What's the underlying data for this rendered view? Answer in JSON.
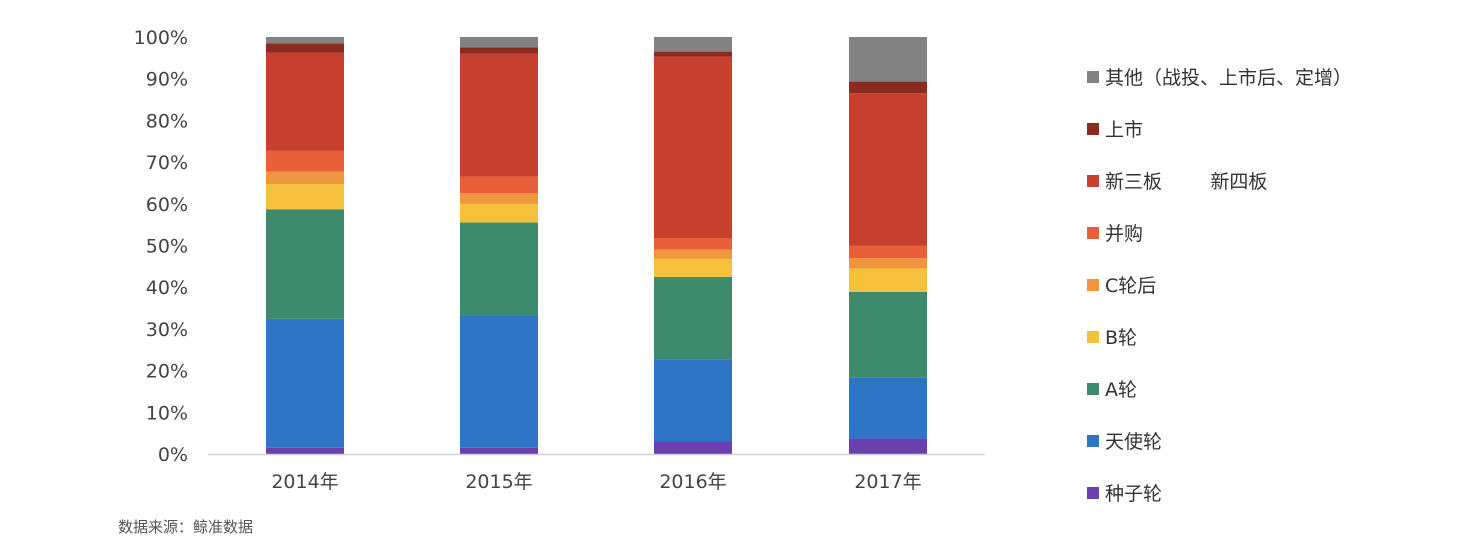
{
  "chart_data": {
    "type": "bar",
    "stacked": true,
    "categories": [
      "2014年",
      "2015年",
      "2016年",
      "2017年"
    ],
    "ylim": [
      0,
      100
    ],
    "yticks": [
      "0%",
      "10%",
      "20%",
      "30%",
      "40%",
      "50%",
      "60%",
      "70%",
      "80%",
      "90%",
      "100%"
    ],
    "legend_position": "right",
    "series": [
      {
        "name": "种子轮",
        "color": "#6a3fb0",
        "values": [
          1.5,
          1.5,
          3,
          3.7
        ]
      },
      {
        "name": "天使轮",
        "color": "#2e75c5",
        "values": [
          30.9,
          31.7,
          19.7,
          14.6
        ]
      },
      {
        "name": "A轮",
        "color": "#3d8a6c",
        "values": [
          26.3,
          22.3,
          19.8,
          20.6
        ]
      },
      {
        "name": "B轮",
        "color": "#f5c03c",
        "values": [
          6,
          4.5,
          4.3,
          5.6
        ]
      },
      {
        "name": "C轮后",
        "color": "#f0973e",
        "values": [
          3,
          2.5,
          2.2,
          2.5
        ]
      },
      {
        "name": "并购",
        "color": "#e85f3a",
        "values": [
          5,
          4,
          2.8,
          3
        ]
      },
      {
        "name": "新三板        新四板",
        "color": "#c7402e",
        "values": [
          23.5,
          29.5,
          43.5,
          36.5
        ]
      },
      {
        "name": "上市",
        "color": "#8b2a1e",
        "values": [
          2.3,
          1.5,
          1.2,
          2.8
        ]
      },
      {
        "name": "其他（战投、上市后、定增）",
        "color": "#828282",
        "values": [
          1.5,
          2.5,
          3.5,
          10.7
        ]
      }
    ]
  },
  "source_note": "数据来源：鲸准数据",
  "colors": {
    "axis": "#d0d0d0",
    "tick_text": "#444444"
  }
}
